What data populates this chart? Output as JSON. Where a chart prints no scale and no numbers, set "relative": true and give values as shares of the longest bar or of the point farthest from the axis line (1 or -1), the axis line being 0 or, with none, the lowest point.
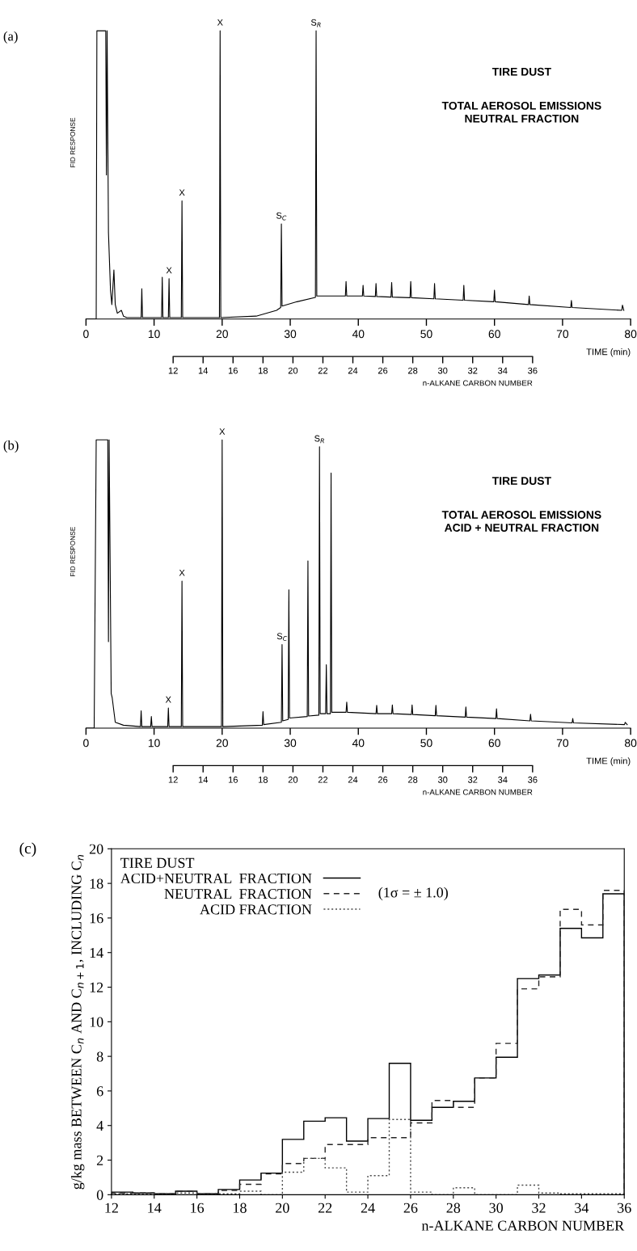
{
  "chart_data": [
    {
      "type": "line",
      "relative": true,
      "title": "TIRE DUST",
      "subtitle": "TOTAL AEROSOL EMISSIONS\nNEUTRAL FRACTION",
      "ylabel": "FID RESPONSE",
      "xlabel": "TIME (min)",
      "x2label": "n-ALKANE CARBON NUMBER",
      "color": "#000000",
      "x": [
        0,
        1.5,
        1.6,
        2.9,
        3.0,
        3.1,
        3.3,
        3.6,
        3.8,
        4.1,
        4.3,
        4.6,
        5.2,
        5.5,
        6.0,
        8.1,
        8.2,
        8.3,
        11.1,
        11.2,
        11.3,
        12.1,
        12.2,
        12.3,
        14.0,
        14.1,
        14.2,
        19.6,
        19.7,
        19.8,
        25.0,
        28.0,
        28.6,
        28.7,
        28.8,
        31.0,
        33.7,
        33.8,
        33.9,
        36.0,
        38.1,
        38.2,
        38.3,
        40.6,
        40.7,
        40.8,
        42.5,
        42.6,
        42.7,
        44.8,
        44.9,
        45.0,
        47.6,
        47.7,
        47.8,
        51.1,
        51.2,
        51.3,
        55.4,
        55.5,
        55.6,
        59.9,
        60.0,
        60.1,
        65.0,
        65.1,
        65.2,
        71.2,
        71.3,
        71.4,
        78.7,
        78.8,
        79.0
      ],
      "values": [
        0,
        0,
        1.0,
        1.0,
        0.5,
        1.0,
        0.3,
        0.1,
        0.05,
        0.17,
        0.05,
        0.02,
        0.03,
        0.01,
        0.005,
        0.005,
        0.105,
        0.005,
        0.005,
        0.145,
        0.005,
        0.005,
        0.14,
        0.005,
        0.005,
        0.41,
        0.005,
        0.005,
        1.0,
        0.005,
        0.01,
        0.03,
        0.04,
        0.33,
        0.045,
        0.06,
        0.075,
        1.0,
        0.08,
        0.08,
        0.08,
        0.13,
        0.08,
        0.08,
        0.117,
        0.08,
        0.078,
        0.123,
        0.078,
        0.076,
        0.127,
        0.076,
        0.074,
        0.13,
        0.074,
        0.07,
        0.123,
        0.07,
        0.065,
        0.117,
        0.065,
        0.06,
        0.1,
        0.06,
        0.05,
        0.08,
        0.05,
        0.04,
        0.064,
        0.04,
        0.03,
        0.048,
        0.03
      ],
      "xlim": [
        0,
        80
      ],
      "xticks": [
        0,
        10,
        20,
        30,
        40,
        50,
        60,
        70,
        80
      ],
      "x2lim": [
        12,
        36
      ],
      "x2ticks": [
        12,
        14,
        16,
        18,
        20,
        22,
        24,
        26,
        28,
        30,
        32,
        34,
        36
      ],
      "annotations": [
        "(a)",
        {
          "text": "X",
          "x": 12.2,
          "y": 0.14
        },
        {
          "text": "X",
          "x": 14.1,
          "y": 0.41
        },
        {
          "text": "X",
          "x": 19.7,
          "y": 1.0
        },
        {
          "text": "S$_{C}$",
          "x": 28.7,
          "y": 0.33
        },
        {
          "text": "S$_{R}$",
          "x": 33.8,
          "y": 1.0
        }
      ]
    },
    {
      "type": "line",
      "relative": true,
      "title": "TIRE DUST",
      "subtitle": "TOTAL AEROSOL EMISSIONS\nACID + NEUTRAL FRACTION",
      "ylabel": "FID RESPONSE",
      "xlabel": "TIME (min)",
      "x2label": "n-ALKANE CARBON NUMBER",
      "color": "#000000",
      "x": [
        0,
        1.2,
        1.5,
        3.2,
        3.3,
        3.4,
        3.7,
        3.85,
        4.3,
        5.5,
        8.0,
        8.1,
        8.2,
        9.5,
        9.6,
        9.7,
        12.0,
        12.1,
        12.2,
        14.0,
        14.1,
        14.2,
        19.9,
        20.0,
        20.1,
        25.9,
        26.0,
        26.1,
        28.7,
        28.8,
        28.9,
        29.7,
        29.8,
        29.9,
        32.5,
        32.6,
        32.7,
        34.2,
        34.3,
        34.4,
        35.2,
        35.3,
        35.4,
        35.9,
        36.0,
        36.1,
        38.2,
        38.3,
        38.4,
        42.6,
        42.7,
        42.8,
        44.9,
        45.0,
        45.1,
        47.8,
        47.9,
        48.0,
        51.3,
        51.4,
        51.5,
        55.7,
        55.8,
        55.9,
        60.2,
        60.3,
        60.4,
        65.2,
        65.3,
        65.4,
        71.4,
        71.5,
        71.6,
        79.1,
        79.2,
        79.5
      ],
      "values": [
        0,
        0,
        1.0,
        1.0,
        0.3,
        1.0,
        0.12,
        0.105,
        0.02,
        0.01,
        0.005,
        0.06,
        0.005,
        0.005,
        0.04,
        0.005,
        0.005,
        0.07,
        0.005,
        0.005,
        0.51,
        0.005,
        0.005,
        1.0,
        0.005,
        0.01,
        0.057,
        0.012,
        0.02,
        0.29,
        0.025,
        0.03,
        0.48,
        0.035,
        0.04,
        0.58,
        0.042,
        0.045,
        0.976,
        0.05,
        0.05,
        0.22,
        0.05,
        0.05,
        0.885,
        0.055,
        0.055,
        0.09,
        0.055,
        0.05,
        0.079,
        0.05,
        0.05,
        0.08,
        0.05,
        0.047,
        0.08,
        0.047,
        0.043,
        0.079,
        0.043,
        0.038,
        0.073,
        0.038,
        0.033,
        0.067,
        0.033,
        0.025,
        0.048,
        0.025,
        0.018,
        0.033,
        0.018,
        0.012,
        0.02,
        0.012
      ],
      "xlim": [
        0,
        80
      ],
      "xticks": [
        0,
        10,
        20,
        30,
        40,
        50,
        60,
        70,
        80
      ],
      "x2lim": [
        12,
        36
      ],
      "x2ticks": [
        12,
        14,
        16,
        18,
        20,
        22,
        24,
        26,
        28,
        30,
        32,
        34,
        36
      ],
      "annotations": [
        "(b)",
        {
          "text": "X",
          "x": 12.1,
          "y": 0.07
        },
        {
          "text": "X",
          "x": 14.1,
          "y": 0.51
        },
        {
          "text": "X",
          "x": 20.0,
          "y": 1.0
        },
        {
          "text": "S$_{C}$",
          "x": 28.8,
          "y": 0.29
        },
        {
          "text": "S$_{R}$",
          "x": 34.3,
          "y": 0.976
        }
      ]
    },
    {
      "type": "histogram",
      "xlabel": "n-ALKANE CARBON NUMBER",
      "ylabel": "g/kg mass BETWEEN C$_{n}$ AND C$_{n+1}$, INCLUDING C$_{n}$",
      "legend_title": "TIRE DUST",
      "legend": "top left",
      "bins": [
        12,
        13,
        14,
        15,
        16,
        17,
        18,
        19,
        20,
        21,
        22,
        23,
        24,
        25,
        26,
        27,
        28,
        29,
        30,
        31,
        32,
        33,
        34,
        35,
        36
      ],
      "series": [
        {
          "name": "ACID+NEUTRAL  FRACTION",
          "color": "#000000",
          "line_style": "solid",
          "values": [
            0.15,
            0.1,
            0.05,
            0.2,
            0.05,
            0.3,
            0.85,
            1.25,
            3.2,
            4.25,
            4.45,
            3.1,
            4.4,
            7.6,
            4.3,
            5.05,
            5.4,
            6.75,
            7.95,
            12.5,
            12.7,
            15.4,
            14.85,
            17.4
          ]
        },
        {
          "name": "NEUTRAL  FRACTION",
          "color": "#262626",
          "line_style": "dashed",
          "values": [
            0.1,
            0.1,
            0.05,
            0.2,
            0.05,
            0.25,
            0.6,
            1.2,
            1.8,
            2.1,
            2.9,
            2.9,
            3.3,
            3.3,
            4.15,
            5.45,
            5.05,
            6.75,
            8.75,
            11.9,
            12.6,
            16.5,
            15.6,
            17.6
          ]
        },
        {
          "name": "ACID FRACTION",
          "color": "#4d4d4d",
          "line_style": "dotted",
          "values": [
            0.05,
            0.05,
            0.05,
            0.1,
            0.05,
            0.05,
            0.2,
            0.0,
            1.3,
            2.1,
            1.55,
            0.15,
            1.1,
            4.35,
            0.15,
            0.0,
            0.4,
            0.0,
            0.0,
            0.55,
            0.1,
            0.05,
            0.05,
            0.05
          ]
        }
      ],
      "xlim": [
        12,
        36
      ],
      "xticks": [
        12,
        14,
        16,
        18,
        20,
        22,
        24,
        26,
        28,
        30,
        32,
        34,
        36
      ],
      "ylim": [
        0,
        20
      ],
      "yticks": [
        0,
        2,
        4,
        6,
        8,
        10,
        12,
        14,
        16,
        18,
        20
      ],
      "annotations": [
        "(c)",
        "(1σ = ± 1.0)"
      ]
    }
  ]
}
